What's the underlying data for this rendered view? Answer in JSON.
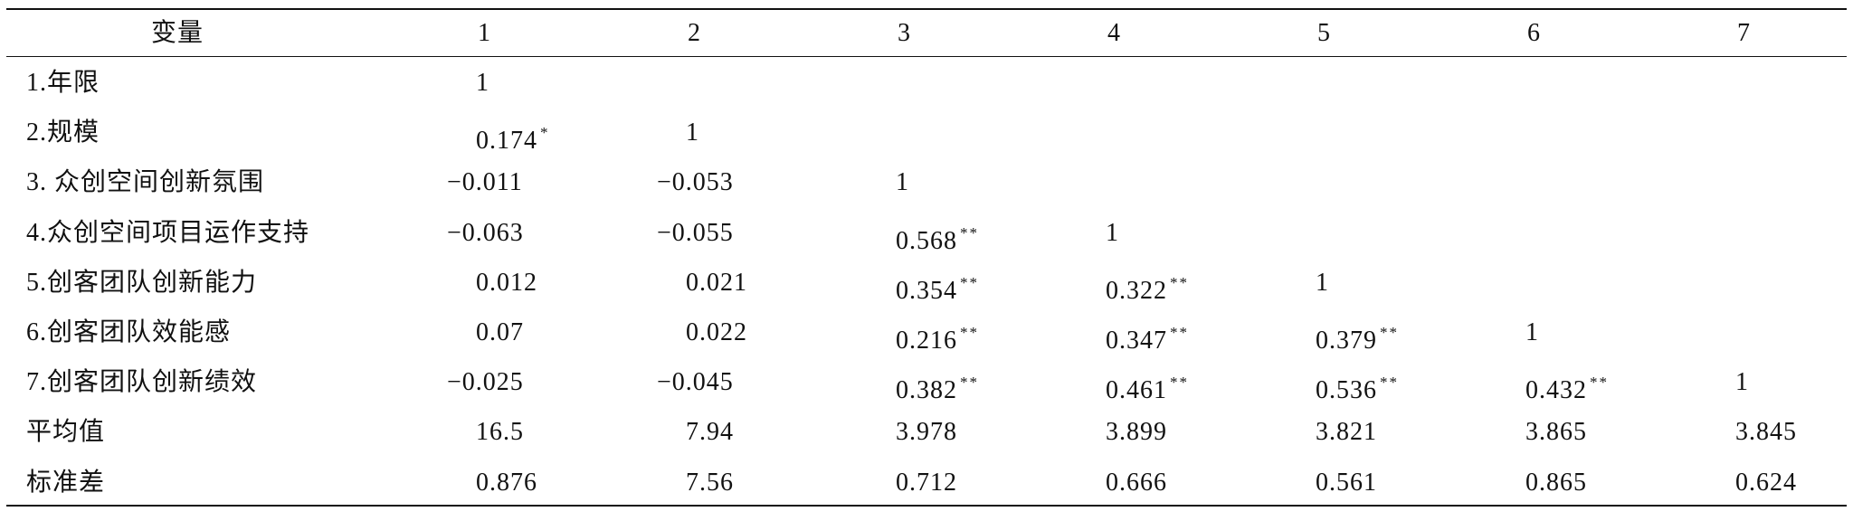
{
  "table": {
    "header": [
      "变量",
      "1",
      "2",
      "3",
      "4",
      "5",
      "6",
      "7"
    ],
    "rows": [
      {
        "label": "1.年限",
        "cells": [
          "1"
        ]
      },
      {
        "label": "2.规模",
        "cells": [
          {
            "v": "0.174",
            "sig": "*"
          },
          "1"
        ]
      },
      {
        "label": "3. 众创空间创新氛围",
        "cells": [
          "−0.011",
          "−0.053",
          "1"
        ]
      },
      {
        "label": "4.众创空间项目运作支持",
        "cells": [
          "−0.063",
          "−0.055",
          {
            "v": "0.568",
            "sig": "**"
          },
          "1"
        ]
      },
      {
        "label": "5.创客团队创新能力",
        "cells": [
          "0.012",
          "0.021",
          {
            "v": "0.354",
            "sig": "**"
          },
          {
            "v": "0.322",
            "sig": "**"
          },
          "1"
        ]
      },
      {
        "label": "6.创客团队效能感",
        "cells": [
          "0.07",
          "0.022",
          {
            "v": "0.216",
            "sig": "**"
          },
          {
            "v": "0.347",
            "sig": "**"
          },
          {
            "v": "0.379",
            "sig": "**"
          },
          "1"
        ]
      },
      {
        "label": "7.创客团队创新绩效",
        "cells": [
          "−0.025",
          "−0.045",
          {
            "v": "0.382",
            "sig": "**"
          },
          {
            "v": "0.461",
            "sig": "**"
          },
          {
            "v": "0.536",
            "sig": "**"
          },
          {
            "v": "0.432",
            "sig": "**"
          },
          "1"
        ]
      },
      {
        "label": "平均值",
        "cells": [
          "16.5",
          "7.94",
          "3.978",
          "3.899",
          "3.821",
          "3.865",
          "3.845"
        ]
      },
      {
        "label": "标准差",
        "cells": [
          "0.876",
          "7.56",
          "0.712",
          "0.666",
          "0.561",
          "0.865",
          "0.624"
        ]
      }
    ]
  }
}
